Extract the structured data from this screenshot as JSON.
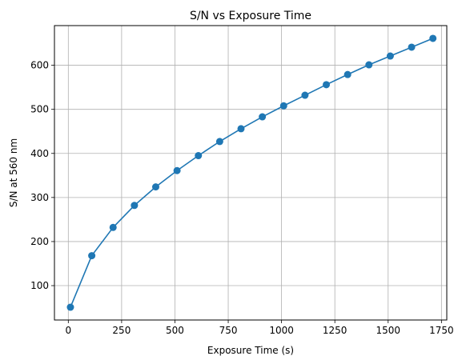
{
  "chart_data": {
    "type": "line",
    "title": "S/N vs Exposure Time",
    "xlabel": "Exposure Time (s)",
    "ylabel": "S/N at 560 nm",
    "xlim": [
      -65,
      1775
    ],
    "ylim": [
      22,
      690
    ],
    "xticks": [
      0,
      250,
      500,
      750,
      1000,
      1250,
      1500,
      1750
    ],
    "yticks": [
      100,
      200,
      300,
      400,
      500,
      600
    ],
    "grid": true,
    "series": [
      {
        "color": "#1f77b4",
        "marker": "circle",
        "x": [
          10,
          110,
          210,
          310,
          410,
          510,
          610,
          710,
          810,
          910,
          1010,
          1110,
          1210,
          1310,
          1410,
          1510,
          1610,
          1710
        ],
        "y": [
          51,
          168,
          232,
          282,
          324,
          361,
          395,
          427,
          456,
          483,
          508,
          532,
          556,
          579,
          601,
          621,
          641,
          661
        ]
      }
    ]
  }
}
